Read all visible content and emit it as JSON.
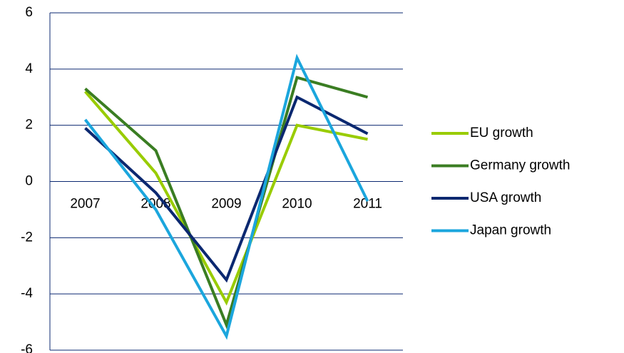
{
  "chart_data": {
    "type": "line",
    "categories": [
      "2007",
      "2008",
      "2009",
      "2010",
      "2011"
    ],
    "series": [
      {
        "name": "EU growth",
        "color": "#99cc00",
        "values": [
          3.2,
          0.3,
          -4.3,
          2.0,
          1.5
        ]
      },
      {
        "name": "Germany growth",
        "color": "#3a7d22",
        "values": [
          3.3,
          1.1,
          -5.1,
          3.7,
          3.0
        ]
      },
      {
        "name": "USA growth",
        "color": "#0b2870",
        "values": [
          1.9,
          -0.4,
          -3.5,
          3.0,
          1.7
        ]
      },
      {
        "name": "Japan growth",
        "color": "#1ba6dd",
        "values": [
          2.2,
          -1.0,
          -5.5,
          4.4,
          -0.7
        ]
      }
    ],
    "ylim": [
      -6,
      6
    ],
    "yticks": [
      -6,
      -4,
      -2,
      0,
      2,
      4,
      6
    ],
    "grid": true,
    "legend": "right"
  }
}
